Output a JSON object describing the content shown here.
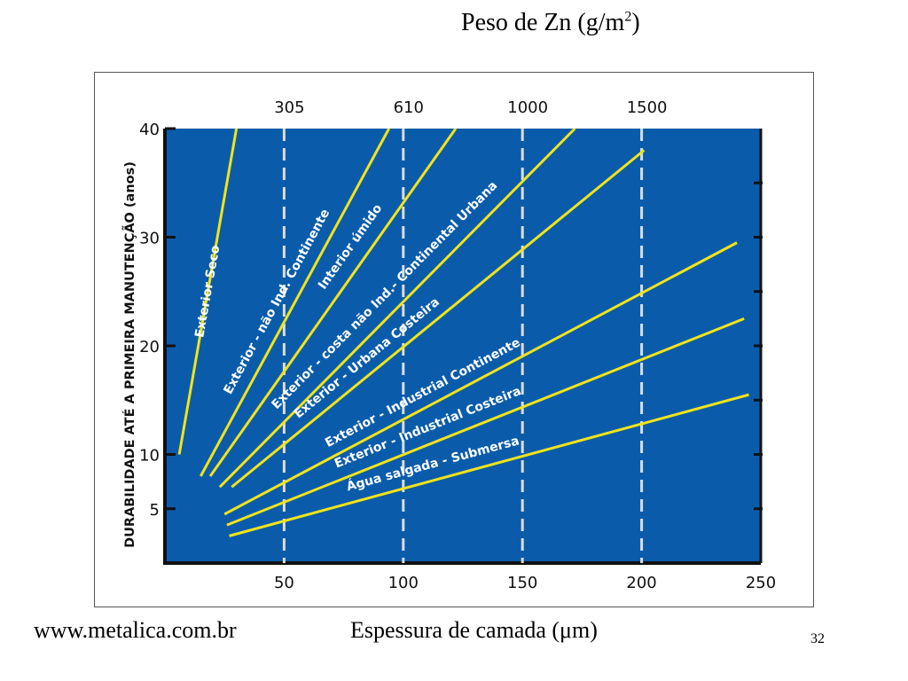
{
  "slide": {
    "top_title_text": "Peso de Zn (g/m",
    "top_title_sup": "2",
    "top_title_close": ")",
    "website": "www.metalica.com.br",
    "bottom_label": "Espessura de camada (μm)",
    "page_number": "32"
  },
  "chart_data": {
    "type": "line",
    "title": "",
    "ylabel": "DURABILIDADE ATÉ A PRIMEIRA MANUTENÇÃO (anos)",
    "xlabel": "Espessura de camada (μm)",
    "xlim": [
      0,
      250
    ],
    "ylim": [
      0,
      40
    ],
    "x_ticks": [
      "50",
      "100",
      "150",
      "200",
      "250"
    ],
    "y_ticks": [
      "5",
      "10",
      "20",
      "30",
      "40"
    ],
    "top_axis_ticks": [
      {
        "label": "305",
        "x": 50
      },
      {
        "label": "610",
        "x": 100
      },
      {
        "label": "1000",
        "x": 150
      },
      {
        "label": "1500",
        "x": 200
      }
    ],
    "colors": {
      "plot_bg": "#0a5cab",
      "line": "#f2e31a",
      "dashed": "#dcdcdc",
      "text": "#ffffff"
    },
    "series": [
      {
        "name": "Exterior Seco",
        "x": [
          6,
          30
        ],
        "y": [
          10,
          40
        ]
      },
      {
        "name": "Exterior - não Ind. Continente",
        "x": [
          15,
          94
        ],
        "y": [
          8,
          40
        ]
      },
      {
        "name": "Interior úmido",
        "x": [
          19,
          122
        ],
        "y": [
          8,
          40
        ]
      },
      {
        "name": "Exterior - costa não Ind.- Continental Urbana",
        "x": [
          23,
          172
        ],
        "y": [
          7,
          40
        ]
      },
      {
        "name": "Exterior - Urbana Costeira",
        "x": [
          28,
          201
        ],
        "y": [
          7,
          38
        ]
      },
      {
        "name": "Exterior - Industrial Continente",
        "x": [
          25,
          240
        ],
        "y": [
          4.5,
          29.5
        ]
      },
      {
        "name": "Exterior - Industrial Costeira",
        "x": [
          26,
          243
        ],
        "y": [
          3.5,
          22.5
        ]
      },
      {
        "name": "Água salgada - Submersa",
        "x": [
          27,
          245
        ],
        "y": [
          2.5,
          15.5
        ]
      }
    ]
  }
}
